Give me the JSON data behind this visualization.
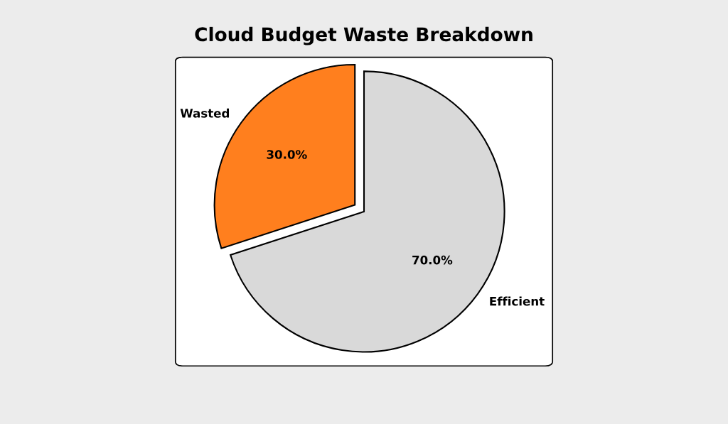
{
  "chart_data": {
    "type": "pie",
    "title": "Cloud Budget Waste Breakdown",
    "categories": [
      "Wasted",
      "Efficient"
    ],
    "values": [
      30,
      70
    ],
    "colors": [
      "#ff7f1e",
      "#d9d9d9"
    ],
    "value_labels": [
      "30.0%",
      "70.0%"
    ],
    "legend": false
  }
}
